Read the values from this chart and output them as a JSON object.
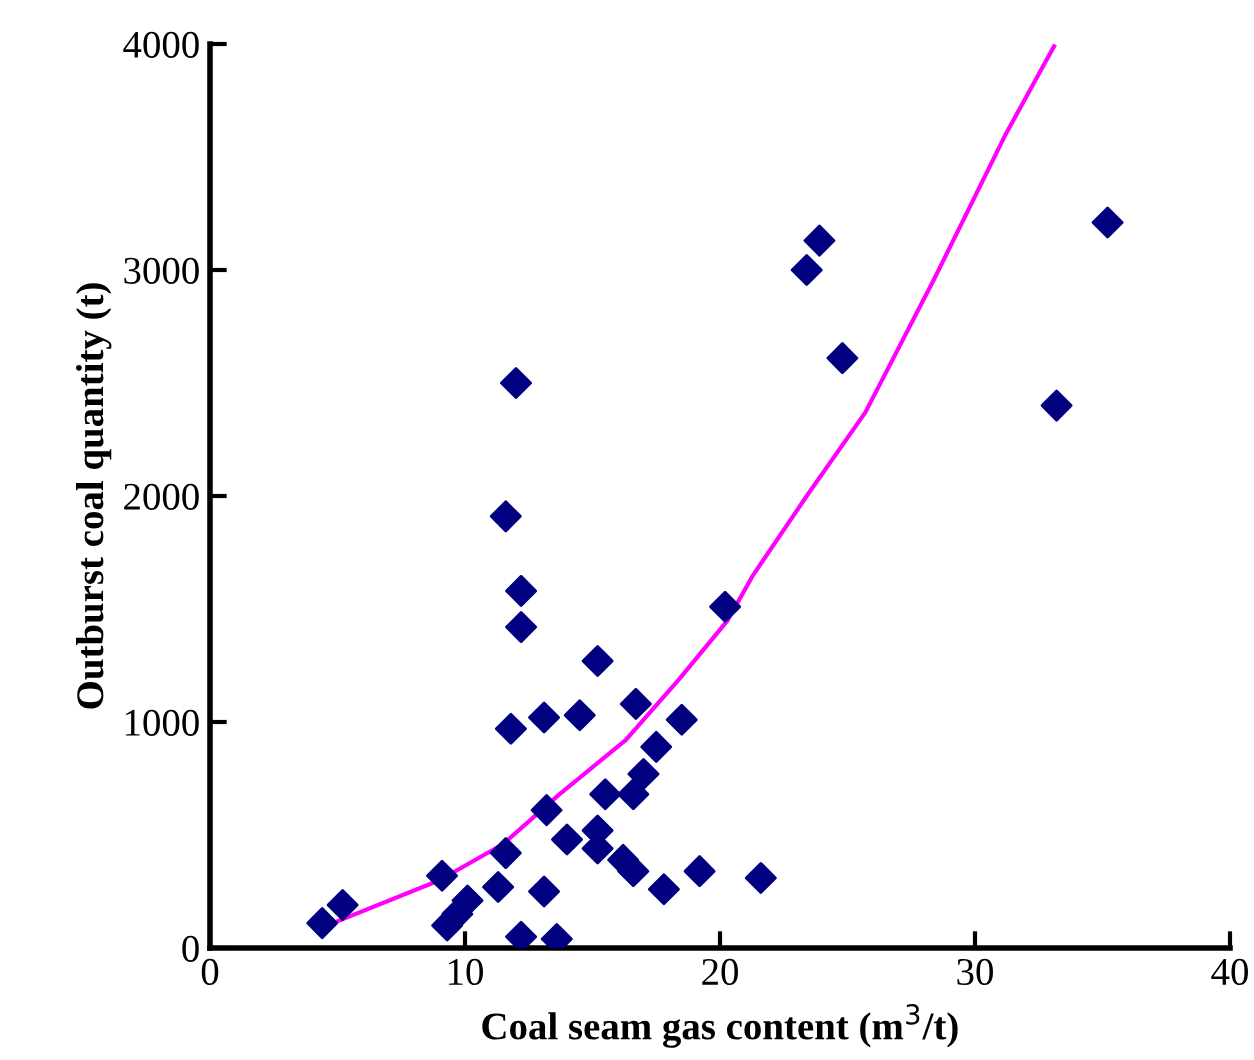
{
  "chart_data": {
    "type": "scatter",
    "xlabel": "Coal seam gas content (m$^{3}$/t)",
    "ylabel": "Outburst coal quantity (t)",
    "xlim": [
      0,
      40
    ],
    "ylim": [
      0,
      4000
    ],
    "xticks": [
      0,
      10,
      20,
      30,
      40
    ],
    "yticks": [
      0,
      1000,
      2000,
      3000,
      4000
    ],
    "grid": false,
    "legend": false,
    "series": [
      {
        "marker": "diamond",
        "color": "#000080",
        "x": [
          4.4,
          5.2,
          9.1,
          9.3,
          9.7,
          10.1,
          11.3,
          11.6,
          11.8,
          12.2,
          12.2,
          12.2,
          13.1,
          13.2,
          13.1,
          13.6,
          14.0,
          14.5,
          15.2,
          15.2,
          15.2,
          15.5,
          16.2,
          16.6,
          16.7,
          16.6,
          17.0,
          17.5,
          17.8,
          18.5,
          19.2,
          20.2,
          21.6,
          12.0,
          11.6,
          23.4,
          23.9,
          24.8,
          33.2,
          35.2
        ],
        "values": [
          110,
          190,
          320,
          100,
          150,
          210,
          270,
          420,
          970,
          1420,
          1580,
          50,
          1020,
          610,
          250,
          40,
          480,
          1030,
          1270,
          520,
          440,
          680,
          390,
          340,
          1080,
          680,
          770,
          890,
          260,
          1010,
          340,
          1510,
          310,
          2500,
          1910,
          3000,
          3130,
          2610,
          2400,
          3210
        ]
      },
      {
        "type": "line",
        "marker": "none",
        "line_style": "solid",
        "color": "#ff00ff",
        "x": [
          4.6,
          9.0,
          11.5,
          13.7,
          16.3,
          18.4,
          20.3,
          21.3,
          23.4,
          25.7,
          28.4,
          31.2,
          33.1
        ],
        "values": [
          100,
          300,
          460,
          680,
          920,
          1190,
          1450,
          1650,
          2000,
          2370,
          2960,
          3600,
          3990
        ]
      }
    ]
  }
}
